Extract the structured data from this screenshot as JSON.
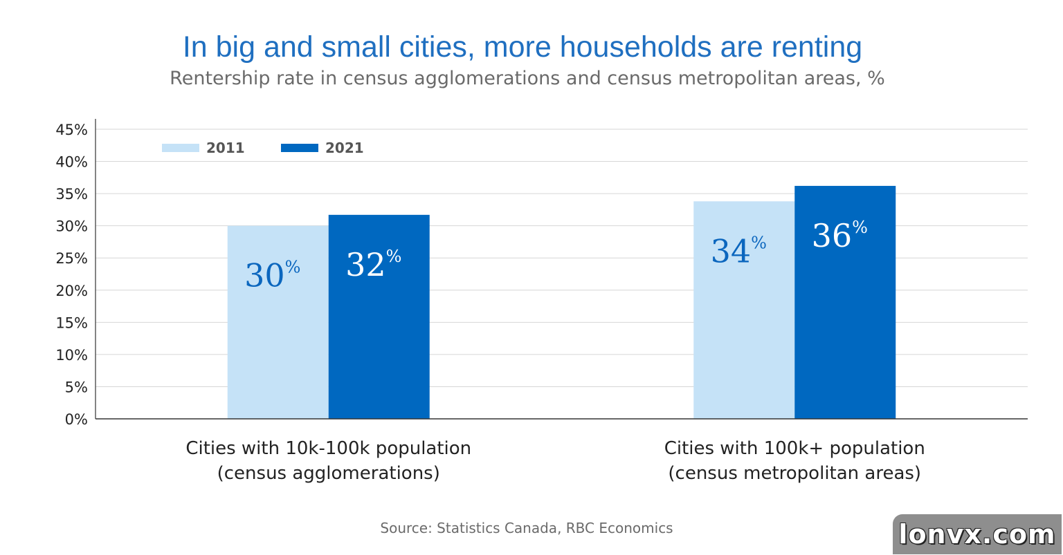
{
  "chart_data": {
    "type": "bar",
    "title": "In big and small cities, more households are renting",
    "subtitle": "Rentership rate in census agglomerations and census metropolitan areas, %",
    "categories": [
      [
        "Cities with 10k-100k population",
        "(census agglomerations)"
      ],
      [
        "Cities with 100k+ population",
        "(census metropolitan areas)"
      ]
    ],
    "series": [
      {
        "name": "2011",
        "color": "#c5e2f7",
        "label_color": "#0b66be",
        "values": [
          30,
          33.8
        ],
        "labels": [
          "30",
          "34"
        ]
      },
      {
        "name": "2021",
        "color": "#0068c0",
        "label_color": "#ffffff",
        "values": [
          31.7,
          36.2
        ],
        "labels": [
          "32",
          "36"
        ]
      }
    ],
    "label_suffix": "%",
    "ylim": [
      0,
      45
    ],
    "yticks": [
      0,
      5,
      10,
      15,
      20,
      25,
      30,
      35,
      40,
      45
    ],
    "ytick_labels": [
      "0%",
      "5%",
      "10%",
      "15%",
      "20%",
      "25%",
      "30%",
      "35%",
      "40%",
      "45%"
    ],
    "grid": true,
    "legend_position": "top-left",
    "source": "Source: Statistics Canada, RBC Economics"
  },
  "watermark": "lonvx.com"
}
